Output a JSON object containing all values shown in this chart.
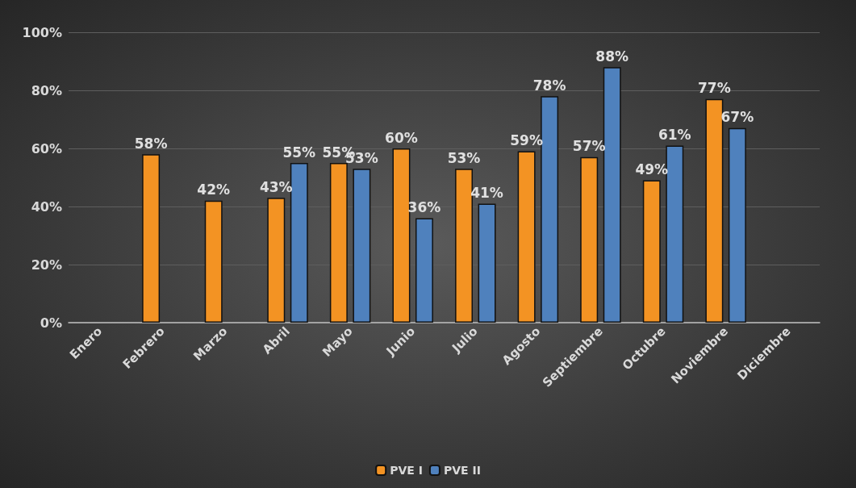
{
  "chart_data": {
    "type": "bar",
    "categories": [
      "Enero",
      "Febrero",
      "Marzo",
      "Abril",
      "Mayo",
      "Junio",
      "Julio",
      "Agosto",
      "Septiembre",
      "Octubre",
      "Noviembre",
      "Diciembre"
    ],
    "series": [
      {
        "name": "PVE I",
        "color": "#f39323",
        "values": [
          null,
          58,
          42,
          43,
          55,
          60,
          53,
          59,
          57,
          49,
          77,
          null
        ],
        "value_labels": [
          null,
          "58%",
          "42%",
          "43%",
          "55%",
          "60%",
          "53%",
          "59%",
          "57%",
          "49%",
          "77%",
          null
        ]
      },
      {
        "name": "PVE II",
        "color": "#4f81bd",
        "values": [
          null,
          null,
          null,
          55,
          53,
          36,
          41,
          78,
          88,
          61,
          67,
          null
        ],
        "value_labels": [
          null,
          null,
          null,
          "55%",
          "53%",
          "36%",
          "41%",
          "78%",
          "88%",
          "61%",
          "67%",
          null
        ]
      }
    ],
    "ylim": [
      0,
      100
    ],
    "yticks": [
      {
        "value": 0,
        "label": "0%"
      },
      {
        "value": 20,
        "label": "20%"
      },
      {
        "value": 40,
        "label": "40%"
      },
      {
        "value": 60,
        "label": "60%"
      },
      {
        "value": 80,
        "label": "80%"
      },
      {
        "value": 100,
        "label": "100%"
      }
    ],
    "grid": "y",
    "legend": "bottom"
  }
}
